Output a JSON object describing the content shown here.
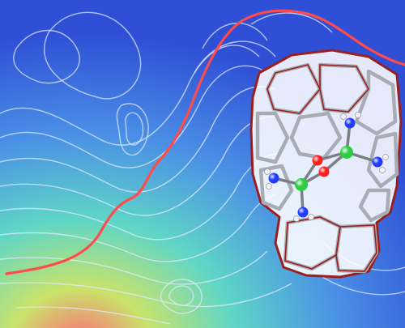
{
  "scene": {
    "kind": "molecular-illustration",
    "background_gradient": [
      "#2f4fd6",
      "#4a8fe6",
      "#5fd6c6",
      "#c9e36a",
      "#ff6a7a"
    ],
    "contour_color": "#dfe9ff",
    "curve_color": "#ff4b4b",
    "cage_frame_color": "#9a1f1f",
    "cage_panel_color": "#ffffff",
    "atom_colors": {
      "metal": "#2ecc40",
      "oxygen": "#ff1e1e",
      "nitrogen": "#1f3cff",
      "hydrogen": "#ffffff"
    }
  }
}
